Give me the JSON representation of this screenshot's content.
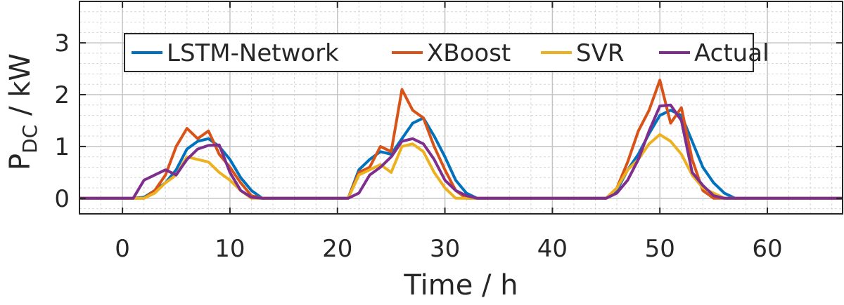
{
  "chart_data": {
    "type": "line",
    "title": "",
    "xlabel": "Time / h",
    "ylabel": {
      "base": "P",
      "subscript": "DC",
      "suffix": " / kW"
    },
    "xlim": [
      -4,
      67
    ],
    "ylim": [
      -0.3,
      3.8
    ],
    "xticks": [
      0,
      10,
      20,
      30,
      40,
      50,
      60
    ],
    "yticks": [
      0,
      1,
      2,
      3
    ],
    "grid": true,
    "minor_grid": true,
    "legend_position": "top-left",
    "legend_orientation": "horizontal",
    "x": [
      -4,
      -3,
      -2,
      -1,
      0,
      1,
      2,
      3,
      4,
      5,
      6,
      7,
      8,
      9,
      10,
      11,
      12,
      13,
      14,
      15,
      16,
      17,
      18,
      19,
      20,
      21,
      22,
      23,
      24,
      25,
      26,
      27,
      28,
      29,
      30,
      31,
      32,
      33,
      34,
      35,
      36,
      37,
      38,
      39,
      40,
      41,
      42,
      43,
      44,
      45,
      46,
      47,
      48,
      49,
      50,
      51,
      52,
      53,
      54,
      55,
      56,
      57,
      58,
      59,
      60,
      61,
      62,
      63,
      64,
      65,
      66,
      67
    ],
    "series": [
      {
        "name": "LSTM-Network",
        "color": "#0072BD",
        "values": [
          0,
          0,
          0,
          0,
          0,
          0,
          0.02,
          0.15,
          0.3,
          0.55,
          0.95,
          1.1,
          1.15,
          1.0,
          0.75,
          0.4,
          0.15,
          0,
          0,
          0,
          0,
          0,
          0,
          0,
          0,
          0,
          0.55,
          0.75,
          0.9,
          0.85,
          1.15,
          1.45,
          1.55,
          1.2,
          0.8,
          0.35,
          0.1,
          0,
          0,
          0,
          0,
          0,
          0,
          0,
          0,
          0,
          0,
          0,
          0,
          0,
          0.15,
          0.55,
          0.85,
          1.25,
          1.6,
          1.7,
          1.6,
          1.1,
          0.6,
          0.3,
          0.1,
          0,
          0,
          0,
          0,
          0,
          0,
          0,
          0,
          0,
          0,
          0
        ]
      },
      {
        "name": "XBoost",
        "color": "#D95319",
        "values": [
          0,
          0,
          0,
          0,
          0,
          0,
          0,
          0.15,
          0.45,
          1.0,
          1.35,
          1.15,
          1.3,
          0.85,
          0.6,
          0.3,
          0.05,
          0,
          0,
          0,
          0,
          0,
          0,
          0,
          0,
          0,
          0.5,
          0.6,
          1.0,
          0.9,
          2.1,
          1.7,
          1.55,
          1.0,
          0.55,
          0.15,
          0,
          0,
          0,
          0,
          0,
          0,
          0,
          0,
          0,
          0,
          0,
          0,
          0,
          0,
          0.2,
          0.7,
          1.3,
          1.7,
          2.28,
          1.45,
          1.75,
          0.75,
          0.15,
          0,
          0,
          0,
          0,
          0,
          0,
          0,
          0,
          0,
          0,
          0,
          0,
          0
        ]
      },
      {
        "name": "SVR",
        "color": "#EDB120",
        "values": [
          0,
          0,
          0,
          0,
          0,
          0,
          0,
          0.1,
          0.3,
          0.45,
          0.8,
          0.75,
          0.7,
          0.5,
          0.35,
          0.15,
          0,
          0,
          0,
          0,
          0,
          0,
          0,
          0,
          0,
          0,
          0.45,
          0.55,
          0.65,
          0.5,
          1.0,
          1.05,
          0.9,
          0.5,
          0.2,
          0,
          0,
          0,
          0,
          0,
          0,
          0,
          0,
          0,
          0,
          0,
          0,
          0,
          0,
          0,
          0.2,
          0.55,
          0.75,
          1.05,
          1.23,
          1.1,
          0.85,
          0.45,
          0.2,
          0.1,
          0,
          0,
          0,
          0,
          0,
          0,
          0,
          0,
          0,
          0,
          0,
          0
        ]
      },
      {
        "name": "Actual",
        "color": "#7E2F8E",
        "values": [
          0,
          0,
          0,
          0,
          0,
          0,
          0.35,
          0.45,
          0.55,
          0.45,
          0.75,
          0.95,
          1.02,
          1.03,
          0.5,
          0.15,
          0.02,
          0,
          0,
          0,
          0,
          0,
          0,
          0,
          0,
          0,
          0.1,
          0.45,
          0.6,
          0.8,
          1.1,
          1.15,
          1.05,
          0.75,
          0.35,
          0.15,
          0.05,
          0,
          0,
          0,
          0,
          0,
          0,
          0,
          0,
          0,
          0,
          0,
          0,
          0,
          0.1,
          0.35,
          0.75,
          1.3,
          1.78,
          1.8,
          1.5,
          0.5,
          0.25,
          0.05,
          0,
          0,
          0,
          0,
          0,
          0,
          0,
          0,
          0,
          0,
          0,
          0
        ]
      }
    ]
  }
}
